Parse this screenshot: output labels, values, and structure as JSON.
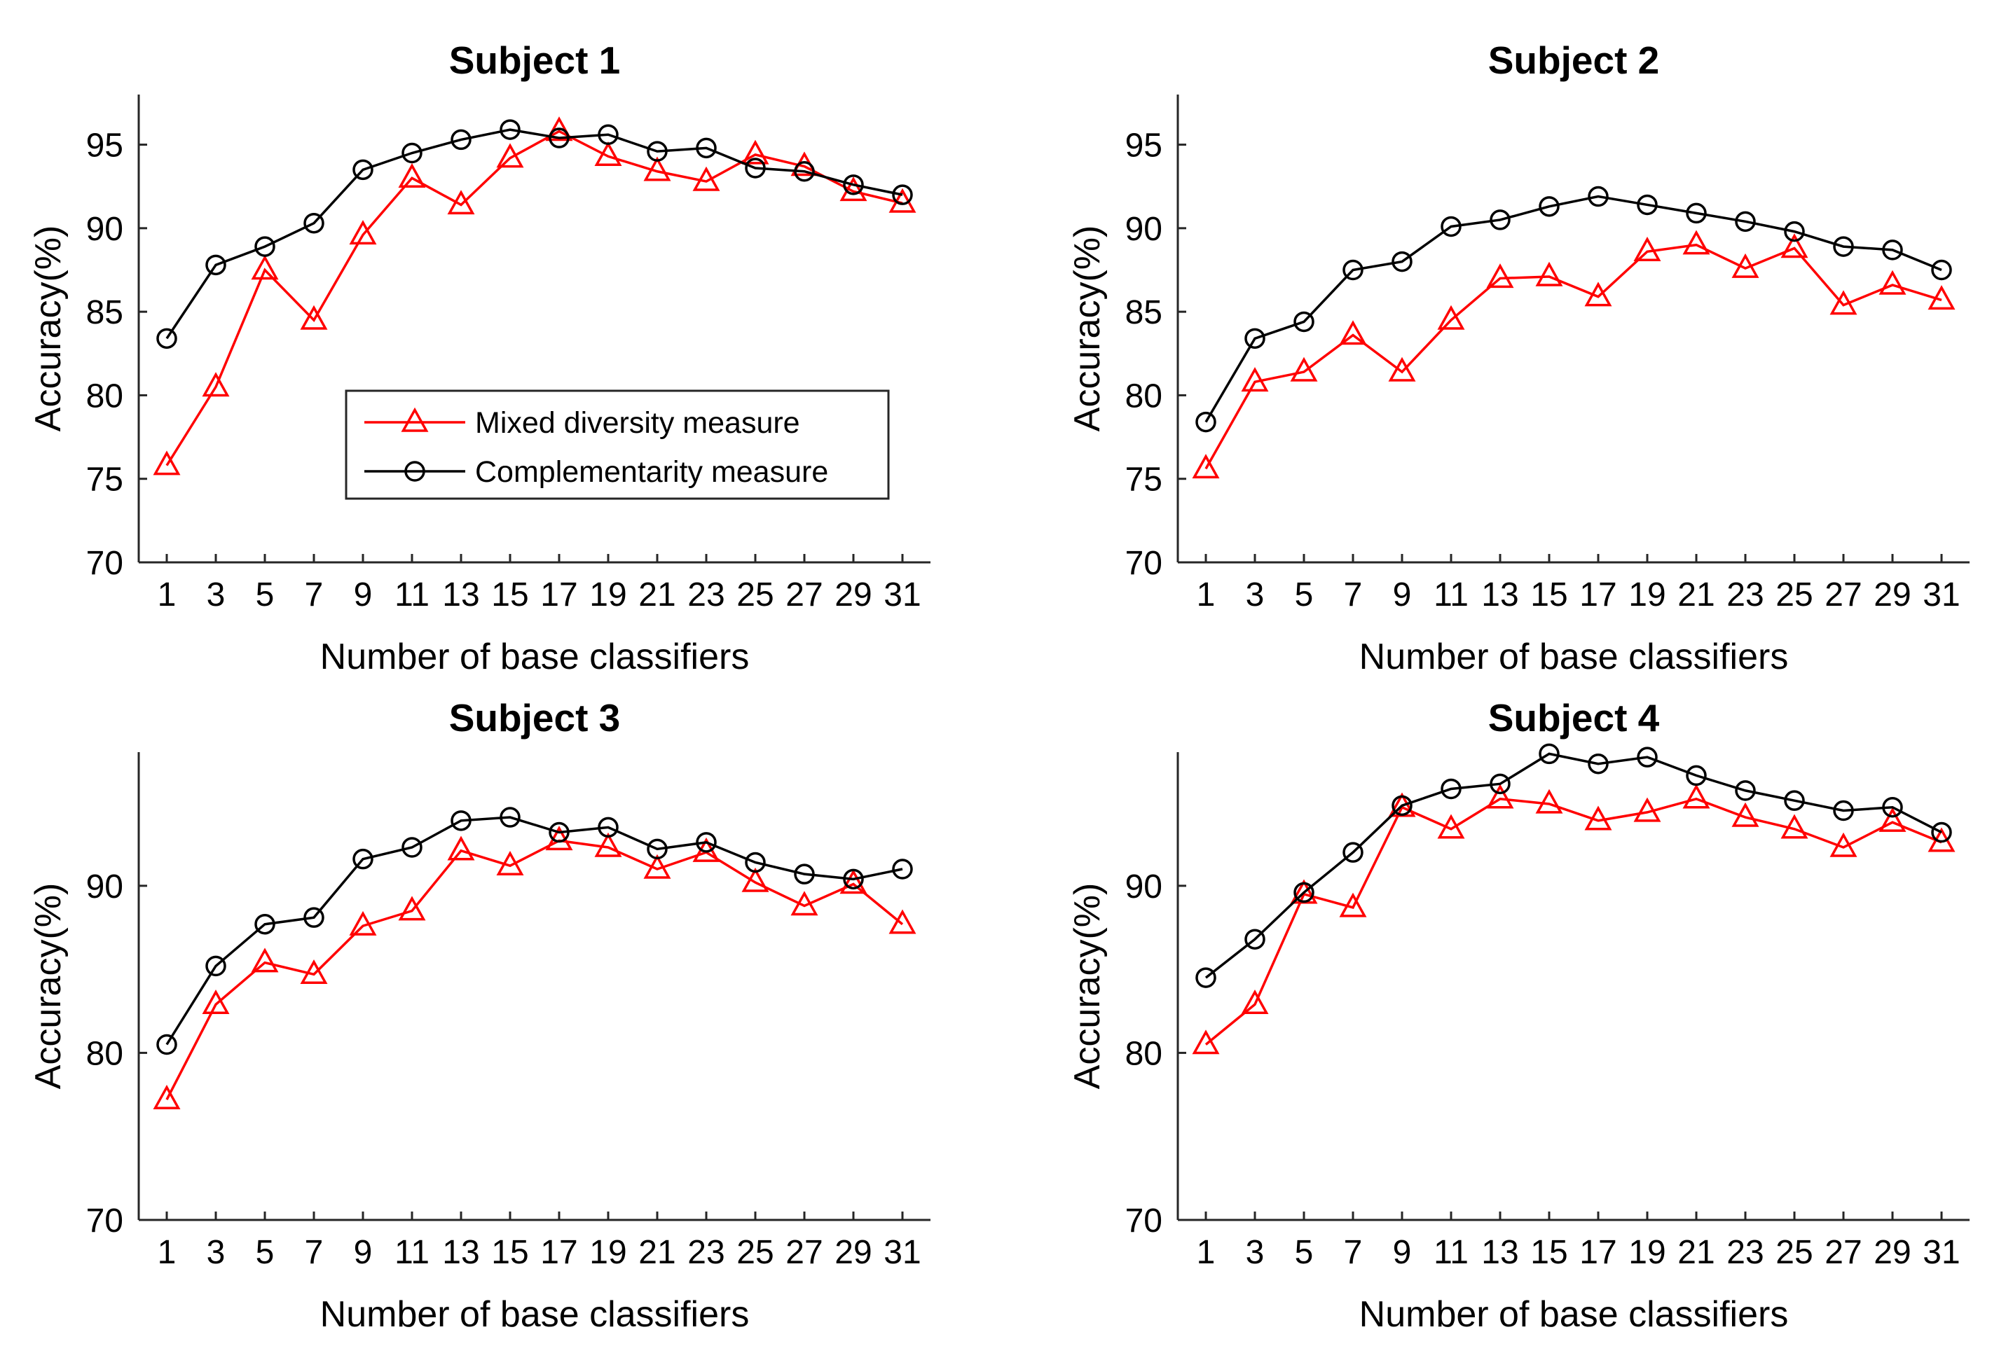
{
  "chart_data": [
    {
      "type": "line",
      "title": "Subject 1",
      "xlabel": "Number of base classifiers",
      "ylabel": "Accuracy(%)",
      "x": [
        1,
        3,
        5,
        7,
        9,
        11,
        13,
        15,
        17,
        19,
        21,
        23,
        25,
        27,
        29,
        31
      ],
      "ylim": [
        70,
        98
      ],
      "yticks": [
        70,
        75,
        80,
        85,
        90,
        95
      ],
      "grid": false,
      "legend": "inside-center",
      "series": [
        {
          "name": "Mixed diversity measure",
          "color": "#ff0000",
          "marker": "triangle",
          "values": [
            75.8,
            80.5,
            87.5,
            84.5,
            89.6,
            93.0,
            91.4,
            94.2,
            95.8,
            94.3,
            93.4,
            92.8,
            94.4,
            93.7,
            92.2,
            91.5
          ]
        },
        {
          "name": "Complementarity measure",
          "color": "#000000",
          "marker": "circle",
          "values": [
            83.4,
            87.8,
            88.9,
            90.3,
            93.5,
            94.5,
            95.3,
            95.9,
            95.4,
            95.6,
            94.6,
            94.8,
            93.6,
            93.4,
            92.6,
            92.0
          ]
        }
      ]
    },
    {
      "type": "line",
      "title": "Subject 2",
      "xlabel": "Number of base classifiers",
      "ylabel": "Accuracy(%)",
      "x": [
        1,
        3,
        5,
        7,
        9,
        11,
        13,
        15,
        17,
        19,
        21,
        23,
        25,
        27,
        29,
        31
      ],
      "ylim": [
        70,
        98
      ],
      "yticks": [
        70,
        75,
        80,
        85,
        90,
        95
      ],
      "grid": false,
      "legend": "none",
      "series": [
        {
          "name": "Mixed diversity measure",
          "color": "#ff0000",
          "marker": "triangle",
          "values": [
            75.6,
            80.8,
            81.4,
            83.6,
            81.4,
            84.5,
            87.0,
            87.1,
            85.9,
            88.6,
            89.0,
            87.6,
            88.8,
            85.4,
            86.6,
            85.7
          ]
        },
        {
          "name": "Complementarity measure",
          "color": "#000000",
          "marker": "circle",
          "values": [
            78.4,
            83.4,
            84.4,
            87.5,
            88.0,
            90.1,
            90.5,
            91.3,
            91.9,
            91.4,
            90.9,
            90.4,
            89.8,
            88.9,
            88.7,
            87.5
          ]
        }
      ]
    },
    {
      "type": "line",
      "title": "Subject 3",
      "xlabel": "Number of base classifiers",
      "ylabel": "Accuracy(%)",
      "x": [
        1,
        3,
        5,
        7,
        9,
        11,
        13,
        15,
        17,
        19,
        21,
        23,
        25,
        27,
        29,
        31
      ],
      "ylim": [
        70,
        98
      ],
      "yticks": [
        70,
        80,
        90
      ],
      "grid": false,
      "legend": "none",
      "series": [
        {
          "name": "Mixed diversity measure",
          "color": "#ff0000",
          "marker": "triangle",
          "values": [
            77.2,
            82.9,
            85.4,
            84.7,
            87.6,
            88.5,
            92.1,
            91.2,
            92.7,
            92.3,
            91.0,
            92.0,
            90.2,
            88.8,
            90.1,
            87.7
          ]
        },
        {
          "name": "Complementarity measure",
          "color": "#000000",
          "marker": "circle",
          "values": [
            80.5,
            85.2,
            87.7,
            88.1,
            91.6,
            92.3,
            93.9,
            94.1,
            93.2,
            93.5,
            92.2,
            92.6,
            91.4,
            90.7,
            90.4,
            91.0
          ]
        }
      ]
    },
    {
      "type": "line",
      "title": "Subject 4",
      "xlabel": "Number of base classifiers",
      "ylabel": "Accuracy(%)",
      "x": [
        1,
        3,
        5,
        7,
        9,
        11,
        13,
        15,
        17,
        19,
        21,
        23,
        25,
        27,
        29,
        31
      ],
      "ylim": [
        70,
        98
      ],
      "yticks": [
        70,
        80,
        90
      ],
      "grid": false,
      "legend": "none",
      "series": [
        {
          "name": "Mixed diversity measure",
          "color": "#ff0000",
          "marker": "triangle",
          "values": [
            80.5,
            82.9,
            89.5,
            88.7,
            94.7,
            93.4,
            95.2,
            94.9,
            93.9,
            94.4,
            95.2,
            94.1,
            93.4,
            92.3,
            93.8,
            92.6
          ]
        },
        {
          "name": "Complementarity measure",
          "color": "#000000",
          "marker": "circle",
          "values": [
            84.5,
            86.8,
            89.6,
            92.0,
            94.8,
            95.8,
            96.1,
            97.9,
            97.3,
            97.7,
            96.6,
            95.7,
            95.1,
            94.5,
            94.7,
            93.2
          ]
        }
      ]
    }
  ]
}
